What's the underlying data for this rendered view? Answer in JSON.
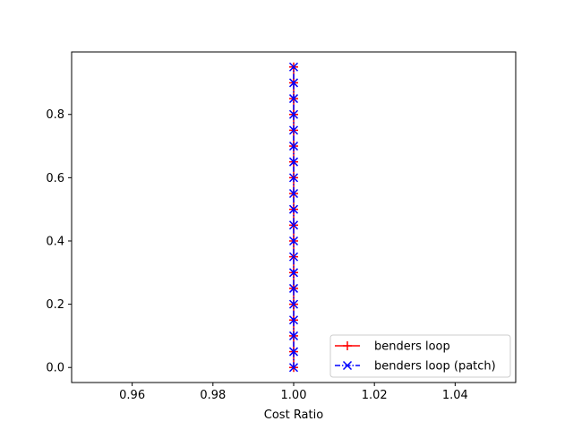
{
  "chart_data": {
    "type": "line",
    "title": "",
    "xlabel": "Cost Ratio",
    "ylabel": "",
    "xlim": [
      0.945,
      1.055
    ],
    "ylim": [
      -0.0475,
      0.9975
    ],
    "xticks": [
      0.96,
      0.98,
      1.0,
      1.02,
      1.04
    ],
    "xtick_labels": [
      "0.96",
      "0.98",
      "1.00",
      "1.02",
      "1.04"
    ],
    "yticks": [
      0.0,
      0.2,
      0.4,
      0.6,
      0.8
    ],
    "ytick_labels": [
      "0.0",
      "0.2",
      "0.4",
      "0.6",
      "0.8"
    ],
    "grid": false,
    "legend_position": "lower-right",
    "series": [
      {
        "name": "benders loop",
        "color": "#ff0000",
        "linestyle": "solid",
        "marker": "plus",
        "x": [
          1.0,
          1.0,
          1.0,
          1.0,
          1.0,
          1.0,
          1.0,
          1.0,
          1.0,
          1.0,
          1.0,
          1.0,
          1.0,
          1.0,
          1.0,
          1.0,
          1.0,
          1.0,
          1.0,
          1.0
        ],
        "y": [
          0.0,
          0.05,
          0.1,
          0.15,
          0.2,
          0.25,
          0.3,
          0.35,
          0.4,
          0.45,
          0.5,
          0.55,
          0.6,
          0.65,
          0.7,
          0.75,
          0.8,
          0.85,
          0.9,
          0.95
        ]
      },
      {
        "name": "benders loop (patch)",
        "color": "#0000ff",
        "linestyle": "dashdot",
        "marker": "x",
        "x": [
          1.0,
          1.0,
          1.0,
          1.0,
          1.0,
          1.0,
          1.0,
          1.0,
          1.0,
          1.0,
          1.0,
          1.0,
          1.0,
          1.0,
          1.0,
          1.0,
          1.0,
          1.0,
          1.0,
          1.0
        ],
        "y": [
          0.0,
          0.05,
          0.1,
          0.15,
          0.2,
          0.25,
          0.3,
          0.35,
          0.4,
          0.45,
          0.5,
          0.55,
          0.6,
          0.65,
          0.7,
          0.75,
          0.8,
          0.85,
          0.9,
          0.95
        ]
      }
    ]
  }
}
